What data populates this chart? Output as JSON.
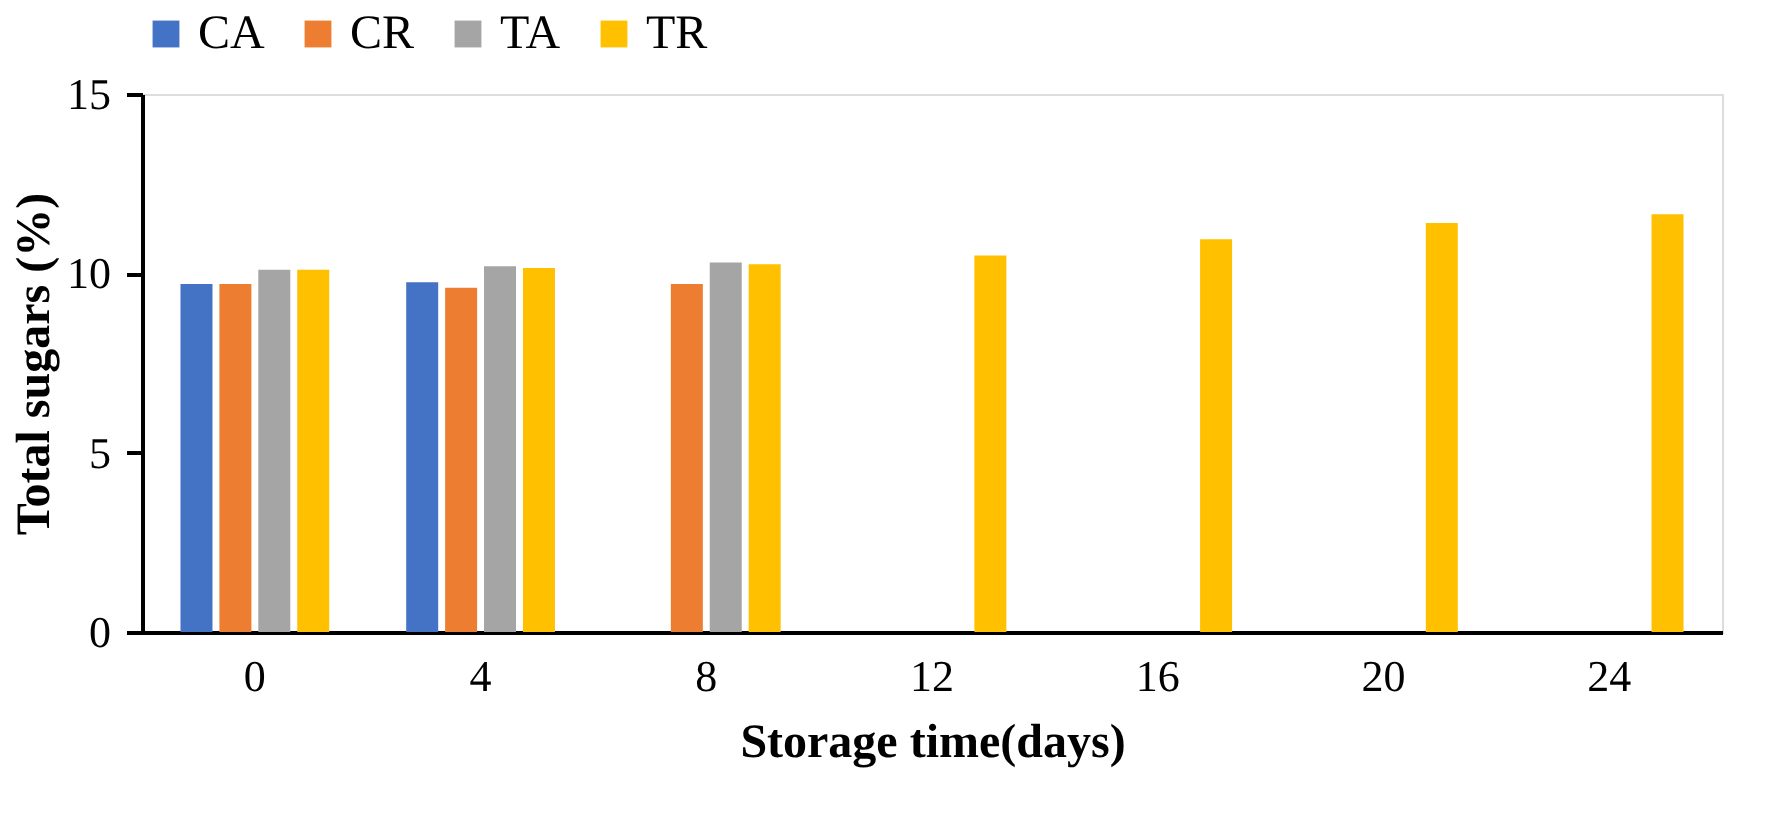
{
  "chart_data": {
    "type": "bar",
    "xlabel": "Storage time(days)",
    "ylabel": "Total sugars (%)",
    "categories": [
      "0",
      "4",
      "8",
      "12",
      "16",
      "20",
      "24"
    ],
    "series": [
      {
        "name": "CA",
        "color": "#4472c4",
        "values": [
          9.7,
          9.75,
          null,
          null,
          null,
          null,
          null
        ]
      },
      {
        "name": "CR",
        "color": "#ed7d31",
        "values": [
          9.7,
          9.6,
          9.7,
          null,
          null,
          null,
          null
        ]
      },
      {
        "name": "TA",
        "color": "#a5a5a5",
        "values": [
          10.1,
          10.2,
          10.3,
          null,
          null,
          null,
          null
        ]
      },
      {
        "name": "TR",
        "color": "#ffc000",
        "values": [
          10.1,
          10.15,
          10.25,
          10.5,
          10.95,
          11.4,
          11.65
        ]
      }
    ],
    "ylim": [
      0,
      15
    ],
    "yticks": [
      0,
      5,
      10,
      15
    ],
    "grid": false,
    "legend": "top"
  }
}
